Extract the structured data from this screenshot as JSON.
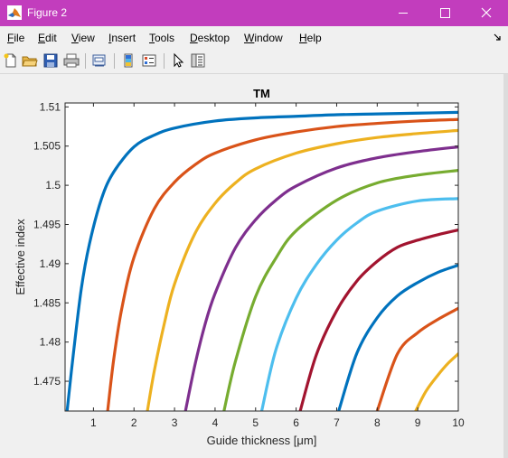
{
  "window": {
    "title": "Figure 2",
    "accent_color": "#c23dbd"
  },
  "menubar": {
    "items": [
      "File",
      "Edit",
      "View",
      "Insert",
      "Tools",
      "Desktop",
      "Window",
      "Help"
    ]
  },
  "toolbar": {
    "icons": [
      "new-figure-icon",
      "open-file-icon",
      "save-icon",
      "print-icon",
      "link-plot-icon",
      "colorbar-icon",
      "legend-icon",
      "pointer-icon",
      "property-inspector-icon"
    ]
  },
  "chart_data": {
    "type": "line",
    "title": "TM",
    "xlabel": "Guide thickness [μm]",
    "ylabel": "Effective index",
    "xlim": [
      0.3,
      10
    ],
    "ylim": [
      1.4712,
      1.5105
    ],
    "xticks": [
      "1",
      "2",
      "3",
      "4",
      "5",
      "6",
      "7",
      "8",
      "9",
      "10"
    ],
    "yticks": [
      "1.475",
      "1.48",
      "1.485",
      "1.49",
      "1.495",
      "1.5",
      "1.505",
      "1.51"
    ],
    "grid": false,
    "series": [
      {
        "color": "#0072bd",
        "x": [
          0.35,
          0.5,
          0.7,
          0.9,
          1.2,
          1.5,
          2.0,
          2.5,
          3.0,
          4.0,
          5.0,
          6.0,
          7.0,
          8.0,
          9.0,
          10.0
        ],
        "y": [
          1.4712,
          1.4783,
          1.4868,
          1.4925,
          1.4983,
          1.5017,
          1.5049,
          1.5064,
          1.5073,
          1.5082,
          1.5086,
          1.5088,
          1.509,
          1.5091,
          1.5092,
          1.5093
        ]
      },
      {
        "color": "#d95319",
        "x": [
          1.35,
          1.5,
          1.7,
          2.0,
          2.5,
          3.0,
          3.5,
          4.0,
          5.0,
          6.0,
          7.0,
          8.0,
          9.0,
          10.0
        ],
        "y": [
          1.4712,
          1.4778,
          1.4843,
          1.4908,
          1.497,
          1.5004,
          1.5026,
          1.5041,
          1.5058,
          1.5068,
          1.5075,
          1.5079,
          1.5082,
          1.5084
        ]
      },
      {
        "color": "#edb120",
        "x": [
          2.33,
          2.5,
          2.75,
          3.0,
          3.5,
          4.0,
          4.5,
          5.0,
          6.0,
          7.0,
          8.0,
          9.0,
          10.0
        ],
        "y": [
          1.4712,
          1.4763,
          1.4824,
          1.4874,
          1.4938,
          1.4977,
          1.5003,
          1.5021,
          1.5041,
          1.5053,
          1.5061,
          1.5066,
          1.507
        ]
      },
      {
        "color": "#7e2f8e",
        "x": [
          3.27,
          3.5,
          3.75,
          4.0,
          4.5,
          5.0,
          5.5,
          6.0,
          7.0,
          8.0,
          9.0,
          10.0
        ],
        "y": [
          1.4712,
          1.477,
          1.4822,
          1.4862,
          1.492,
          1.4956,
          1.4981,
          1.4999,
          1.5022,
          1.5035,
          1.5043,
          1.5049
        ]
      },
      {
        "color": "#77ac30",
        "x": [
          4.22,
          4.5,
          5.0,
          5.5,
          6.0,
          7.0,
          8.0,
          9.0,
          10.0
        ],
        "y": [
          1.4712,
          1.4775,
          1.4858,
          1.4907,
          1.4942,
          1.4981,
          1.5003,
          1.5013,
          1.5019
        ]
      },
      {
        "color": "#4dbeee",
        "x": [
          5.15,
          5.5,
          6.0,
          6.5,
          7.0,
          7.5,
          8.0,
          9.0,
          10.0
        ],
        "y": [
          1.4712,
          1.479,
          1.4856,
          1.4899,
          1.493,
          1.4952,
          1.4967,
          1.498,
          1.4983
        ]
      },
      {
        "color": "#a2142f",
        "x": [
          6.1,
          6.5,
          7.0,
          7.5,
          8.0,
          8.5,
          9.0,
          9.5,
          10.0
        ],
        "y": [
          1.4712,
          1.4784,
          1.484,
          1.4878,
          1.4903,
          1.4921,
          1.493,
          1.4937,
          1.4943
        ]
      },
      {
        "color": "#0072bd",
        "x": [
          7.05,
          7.5,
          8.0,
          8.5,
          9.0,
          9.5,
          10.0
        ],
        "y": [
          1.4712,
          1.4786,
          1.4831,
          1.4859,
          1.4876,
          1.4889,
          1.4898
        ]
      },
      {
        "color": "#d95319",
        "x": [
          8.0,
          8.5,
          9.0,
          9.5,
          10.0
        ],
        "y": [
          1.4712,
          1.4785,
          1.4812,
          1.4829,
          1.4843
        ]
      },
      {
        "color": "#edb120",
        "x": [
          8.95,
          9.2,
          9.5,
          9.75,
          10.0
        ],
        "y": [
          1.4712,
          1.4737,
          1.4758,
          1.4773,
          1.4785
        ]
      }
    ]
  }
}
